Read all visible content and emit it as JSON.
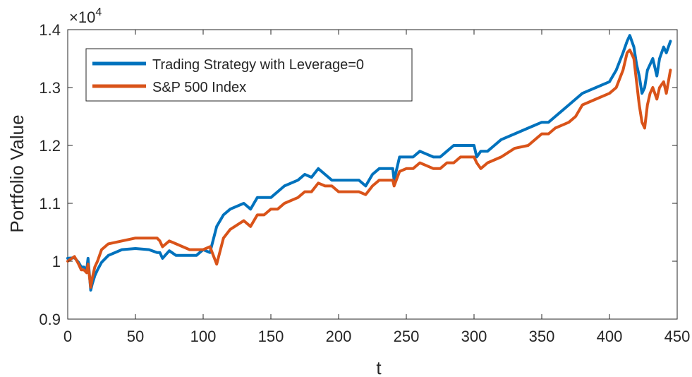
{
  "chart_data": {
    "type": "line",
    "title": "",
    "xlabel": "t",
    "ylabel": "Portfolio Value",
    "y_multiplier_label": "×10",
    "y_multiplier_exponent": "4",
    "xlim": [
      0,
      450
    ],
    "ylim": [
      0.9,
      1.4
    ],
    "x_ticks": [
      0,
      50,
      100,
      150,
      200,
      250,
      300,
      350,
      400,
      450
    ],
    "y_ticks": [
      0.9,
      1.0,
      1.1,
      1.2,
      1.3,
      1.4
    ],
    "x_tick_labels": [
      "0",
      "50",
      "100",
      "150",
      "200",
      "250",
      "300",
      "350",
      "400",
      "450"
    ],
    "y_tick_labels": [
      "0.9",
      "1",
      "1.1",
      "1.2",
      "1.3",
      "1.4"
    ],
    "grid": false,
    "legend_position": "top-left",
    "series": [
      {
        "name": "Trading Strategy with Leverage=0",
        "color": "#0072BD",
        "x": [
          0,
          5,
          8,
          10,
          12,
          14,
          15,
          17,
          18,
          20,
          22,
          25,
          30,
          40,
          50,
          60,
          66,
          68,
          70,
          75,
          80,
          90,
          95,
          100,
          105,
          110,
          115,
          120,
          130,
          135,
          140,
          145,
          150,
          155,
          160,
          170,
          175,
          180,
          185,
          190,
          195,
          200,
          205,
          210,
          215,
          220,
          225,
          230,
          235,
          240,
          241,
          245,
          250,
          255,
          260,
          265,
          270,
          275,
          280,
          285,
          290,
          295,
          300,
          302,
          305,
          310,
          315,
          320,
          330,
          340,
          350,
          355,
          360,
          365,
          370,
          375,
          380,
          390,
          400,
          405,
          410,
          413,
          415,
          418,
          420,
          422,
          424,
          426,
          428,
          430,
          432,
          435,
          437,
          440,
          442,
          445
        ],
        "y": [
          1.005,
          1.006,
          0.998,
          0.99,
          0.99,
          0.985,
          1.005,
          0.95,
          0.96,
          0.975,
          0.985,
          0.998,
          1.01,
          1.02,
          1.022,
          1.02,
          1.015,
          1.015,
          1.005,
          1.018,
          1.01,
          1.01,
          1.01,
          1.02,
          1.015,
          1.06,
          1.08,
          1.09,
          1.1,
          1.09,
          1.11,
          1.11,
          1.11,
          1.12,
          1.13,
          1.14,
          1.15,
          1.145,
          1.16,
          1.15,
          1.14,
          1.14,
          1.14,
          1.14,
          1.14,
          1.13,
          1.15,
          1.16,
          1.16,
          1.16,
          1.14,
          1.18,
          1.18,
          1.18,
          1.19,
          1.185,
          1.18,
          1.18,
          1.19,
          1.2,
          1.2,
          1.2,
          1.2,
          1.18,
          1.19,
          1.19,
          1.2,
          1.21,
          1.22,
          1.23,
          1.24,
          1.24,
          1.25,
          1.26,
          1.27,
          1.28,
          1.29,
          1.3,
          1.31,
          1.33,
          1.36,
          1.38,
          1.39,
          1.37,
          1.34,
          1.32,
          1.29,
          1.3,
          1.33,
          1.34,
          1.35,
          1.32,
          1.35,
          1.37,
          1.36,
          1.38
        ]
      },
      {
        "name": "S&P 500 Index",
        "color": "#D95319",
        "x": [
          0,
          5,
          8,
          10,
          12,
          14,
          15,
          17,
          18,
          20,
          22,
          25,
          30,
          40,
          50,
          60,
          66,
          68,
          70,
          75,
          80,
          90,
          95,
          100,
          105,
          110,
          115,
          120,
          130,
          135,
          140,
          145,
          150,
          155,
          160,
          170,
          175,
          180,
          185,
          190,
          195,
          200,
          205,
          210,
          215,
          220,
          225,
          230,
          235,
          240,
          241,
          245,
          250,
          255,
          260,
          265,
          270,
          275,
          280,
          285,
          290,
          295,
          300,
          302,
          305,
          310,
          315,
          320,
          330,
          340,
          350,
          355,
          360,
          365,
          370,
          375,
          380,
          390,
          400,
          405,
          410,
          413,
          415,
          418,
          420,
          422,
          424,
          426,
          428,
          430,
          432,
          435,
          437,
          440,
          442,
          445
        ],
        "y": [
          1.0,
          1.008,
          0.995,
          0.985,
          0.985,
          0.98,
          0.995,
          0.955,
          0.97,
          0.99,
          1.0,
          1.02,
          1.03,
          1.035,
          1.04,
          1.04,
          1.04,
          1.035,
          1.025,
          1.035,
          1.03,
          1.02,
          1.02,
          1.02,
          1.025,
          0.995,
          1.04,
          1.055,
          1.07,
          1.06,
          1.08,
          1.08,
          1.09,
          1.09,
          1.1,
          1.11,
          1.12,
          1.12,
          1.135,
          1.13,
          1.13,
          1.12,
          1.12,
          1.12,
          1.12,
          1.115,
          1.13,
          1.14,
          1.14,
          1.14,
          1.13,
          1.155,
          1.16,
          1.16,
          1.17,
          1.165,
          1.16,
          1.16,
          1.17,
          1.17,
          1.18,
          1.18,
          1.18,
          1.17,
          1.16,
          1.17,
          1.175,
          1.18,
          1.195,
          1.2,
          1.22,
          1.22,
          1.23,
          1.235,
          1.24,
          1.25,
          1.27,
          1.28,
          1.29,
          1.3,
          1.33,
          1.36,
          1.365,
          1.35,
          1.31,
          1.27,
          1.24,
          1.23,
          1.27,
          1.29,
          1.3,
          1.28,
          1.3,
          1.31,
          1.29,
          1.33
        ]
      }
    ]
  }
}
